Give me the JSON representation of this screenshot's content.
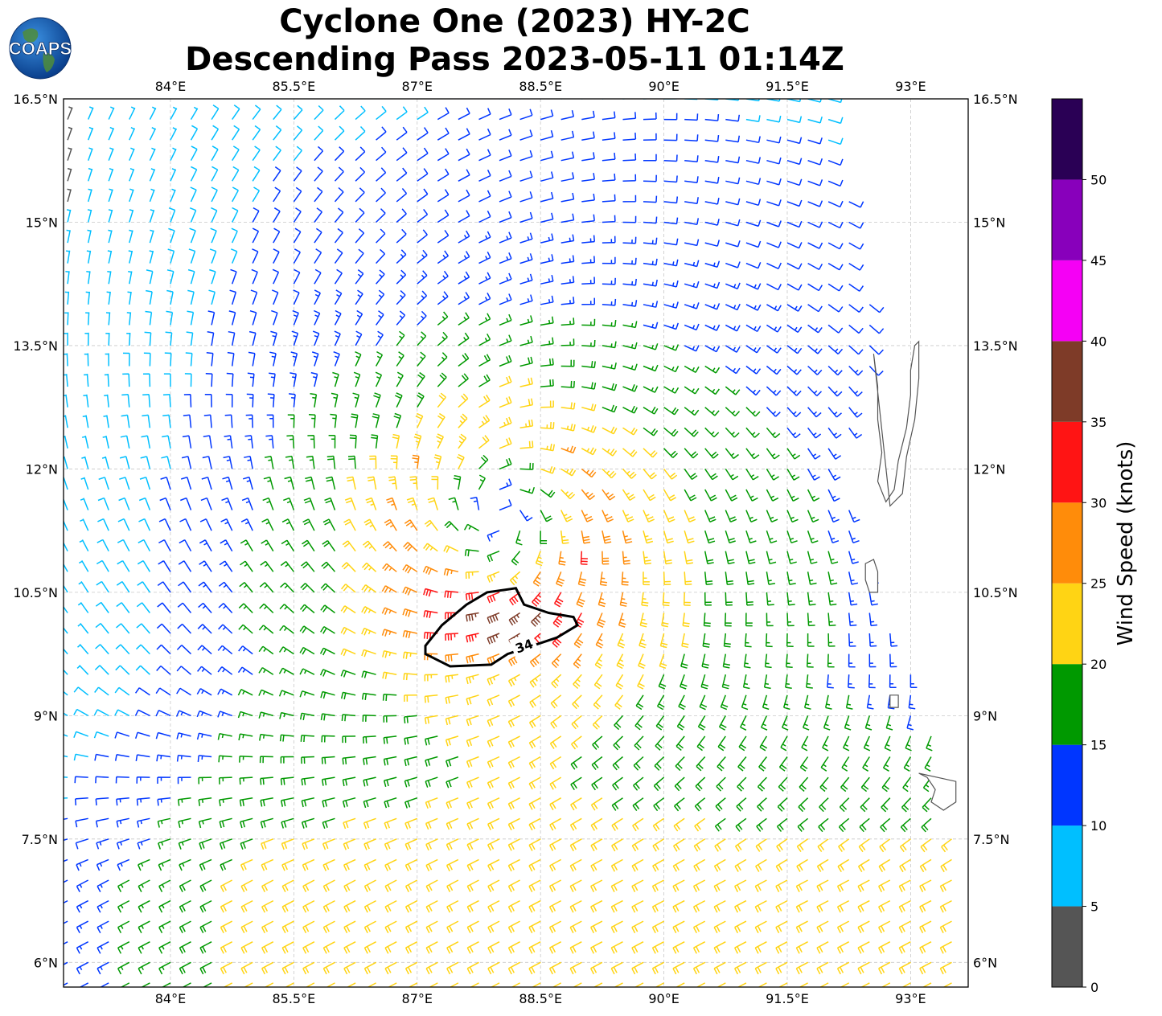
{
  "title_line1": "Cyclone One (2023) HY-2C",
  "title_line2": "Descending Pass 2023-05-11 01:14Z",
  "logo_text": "COAPS",
  "map": {
    "lon_range": [
      82.7,
      93.7
    ],
    "lat_range": [
      5.7,
      16.5
    ],
    "lon_ticks": [
      {
        "value": 84.0,
        "label": "84°E"
      },
      {
        "value": 85.5,
        "label": "85.5°E"
      },
      {
        "value": 87.0,
        "label": "87°E"
      },
      {
        "value": 88.5,
        "label": "88.5°E"
      },
      {
        "value": 90.0,
        "label": "90°E"
      },
      {
        "value": 91.5,
        "label": "91.5°E"
      },
      {
        "value": 93.0,
        "label": "93°E"
      }
    ],
    "lat_ticks": [
      {
        "value": 16.5,
        "label": "16.5°N"
      },
      {
        "value": 15.0,
        "label": "15°N"
      },
      {
        "value": 13.5,
        "label": "13.5°N"
      },
      {
        "value": 12.0,
        "label": "12°N"
      },
      {
        "value": 10.5,
        "label": "10.5°N"
      },
      {
        "value": 9.0,
        "label": "9°N"
      },
      {
        "value": 7.5,
        "label": "7.5°N"
      },
      {
        "value": 6.0,
        "label": "6°N"
      }
    ],
    "storm_center": {
      "lon": 88.0,
      "lat": 11.45
    },
    "contour_label": "34",
    "contour_lonlat": [
      [
        87.1,
        9.85
      ],
      [
        87.3,
        10.1
      ],
      [
        87.6,
        10.35
      ],
      [
        87.85,
        10.5
      ],
      [
        88.2,
        10.55
      ],
      [
        88.3,
        10.35
      ],
      [
        88.6,
        10.25
      ],
      [
        88.9,
        10.2
      ],
      [
        88.95,
        10.1
      ],
      [
        88.7,
        9.95
      ],
      [
        88.4,
        9.85
      ],
      [
        88.1,
        9.75
      ],
      [
        87.9,
        9.62
      ],
      [
        87.4,
        9.6
      ],
      [
        87.1,
        9.75
      ]
    ],
    "coast_andaman": [
      [
        92.55,
        13.4
      ],
      [
        92.6,
        13.0
      ],
      [
        92.6,
        12.6
      ],
      [
        92.65,
        12.2
      ],
      [
        92.6,
        11.85
      ],
      [
        92.7,
        11.6
      ],
      [
        92.8,
        11.75
      ],
      [
        92.85,
        12.1
      ],
      [
        92.95,
        12.5
      ],
      [
        93.0,
        12.9
      ],
      [
        93.0,
        13.2
      ],
      [
        93.05,
        13.5
      ],
      [
        93.1,
        13.55
      ],
      [
        93.1,
        13.1
      ],
      [
        93.05,
        12.6
      ],
      [
        92.95,
        12.15
      ],
      [
        92.9,
        11.7
      ],
      [
        92.75,
        11.55
      ]
    ],
    "coast_little_andaman": [
      [
        92.45,
        10.85
      ],
      [
        92.55,
        10.9
      ],
      [
        92.6,
        10.75
      ],
      [
        92.6,
        10.5
      ],
      [
        92.5,
        10.5
      ],
      [
        92.45,
        10.65
      ]
    ],
    "coast_car_nicobar": [
      [
        92.75,
        9.25
      ],
      [
        92.85,
        9.25
      ],
      [
        92.85,
        9.1
      ],
      [
        92.75,
        9.1
      ]
    ],
    "coast_nicobar": [
      [
        93.1,
        8.3
      ],
      [
        93.2,
        8.25
      ],
      [
        93.3,
        8.1
      ],
      [
        93.25,
        7.95
      ],
      [
        93.4,
        7.85
      ],
      [
        93.55,
        7.95
      ],
      [
        93.55,
        8.2
      ]
    ]
  },
  "wind_field": {
    "units": "knots",
    "swath_east_edge": [
      [
        16.5,
        92.0
      ],
      [
        13.5,
        92.6
      ],
      [
        12.0,
        92.1
      ],
      [
        10.5,
        92.6
      ],
      [
        9.0,
        93.2
      ],
      [
        7.5,
        93.5
      ],
      [
        6.0,
        93.7
      ],
      [
        5.7,
        93.7
      ]
    ]
  },
  "colorbar": {
    "label": "Wind Speed (knots)",
    "bins": [
      {
        "from": 0,
        "to": 5,
        "color": "#555555"
      },
      {
        "from": 5,
        "to": 10,
        "color": "#00bfff"
      },
      {
        "from": 10,
        "to": 15,
        "color": "#0036ff"
      },
      {
        "from": 15,
        "to": 20,
        "color": "#009900"
      },
      {
        "from": 20,
        "to": 25,
        "color": "#ffd414"
      },
      {
        "from": 25,
        "to": 30,
        "color": "#ff8c0a"
      },
      {
        "from": 30,
        "to": 35,
        "color": "#ff1414"
      },
      {
        "from": 35,
        "to": 40,
        "color": "#7e3b28"
      },
      {
        "from": 40,
        "to": 45,
        "color": "#f500f5"
      },
      {
        "from": 45,
        "to": 50,
        "color": "#8800bb"
      },
      {
        "from": 50,
        "to": 55,
        "color": "#2a0055"
      }
    ],
    "tick_labels": [
      "0",
      "5",
      "10",
      "15",
      "20",
      "25",
      "30",
      "35",
      "40",
      "45",
      "50"
    ]
  }
}
